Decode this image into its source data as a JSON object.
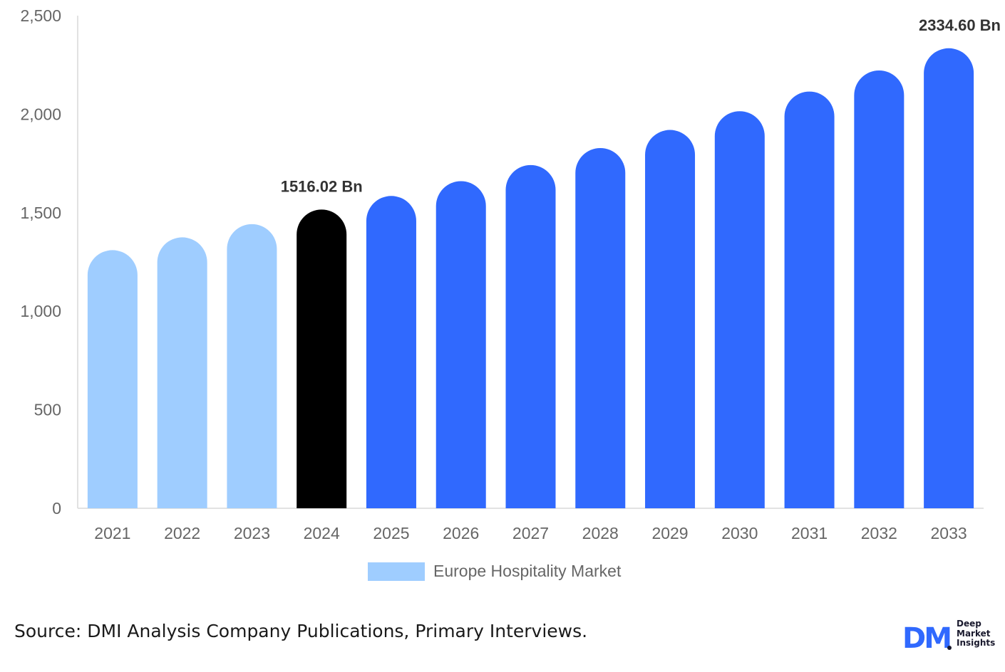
{
  "chart_data": {
    "type": "bar",
    "categories": [
      "2021",
      "2022",
      "2023",
      "2024",
      "2025",
      "2026",
      "2027",
      "2028",
      "2029",
      "2030",
      "2031",
      "2032",
      "2033"
    ],
    "series": [
      {
        "name": "Europe Hospitality Market",
        "values": [
          1310,
          1375,
          1442,
          1516.02,
          1585,
          1660,
          1742,
          1828,
          1920,
          2015,
          2115,
          2222,
          2334.6
        ]
      }
    ],
    "bar_colors": [
      "#9fcdff",
      "#9fcdff",
      "#9fcdff",
      "#000000",
      "#3069fe",
      "#3069fe",
      "#3069fe",
      "#3069fe",
      "#3069fe",
      "#3069fe",
      "#3069fe",
      "#3069fe",
      "#3069fe"
    ],
    "data_labels": [
      {
        "category": "2024",
        "text": "1516.02 Bn"
      },
      {
        "category": "2033",
        "text": "2334.60 Bn"
      }
    ],
    "yticks": [
      "0",
      "500",
      "1,000",
      "1,500",
      "2,000",
      "2,500"
    ],
    "ylim": [
      0,
      2500
    ],
    "legend": {
      "label": "Europe Hospitality Market",
      "color": "#9fcdff",
      "position": "bottom"
    },
    "grid": false
  },
  "footer": {
    "source_label": "Source",
    "source_text": ": DMI Analysis Company Publications, Primary Interviews."
  },
  "brand": {
    "logo_letters": "DM",
    "line1": "Deep",
    "line2": "Market",
    "line3": "Insights",
    "color": "#3069fe"
  }
}
